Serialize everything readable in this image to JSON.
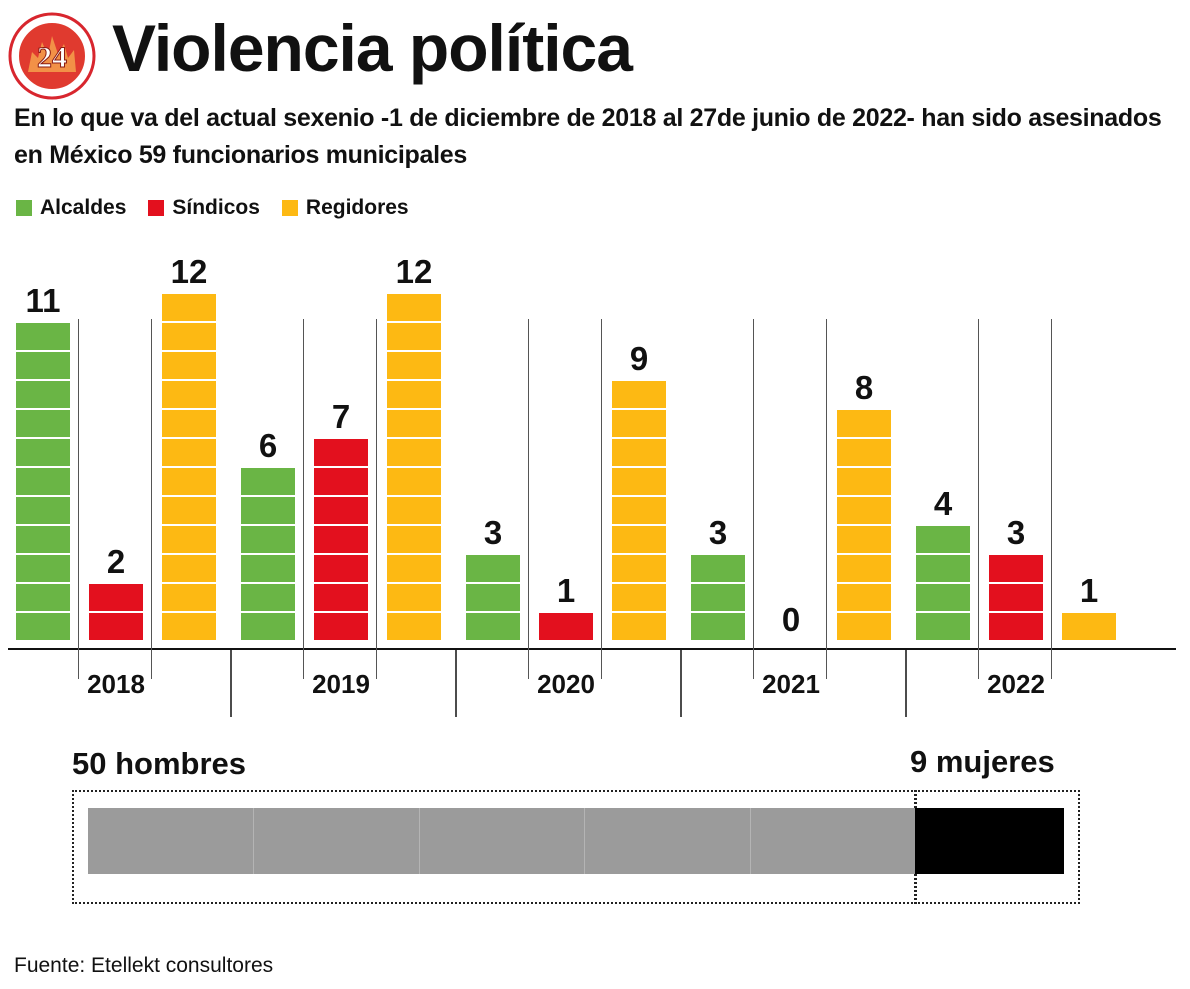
{
  "header": {
    "logo_text": "24",
    "title": "Violencia política",
    "subtitle": "En lo que va del actual sexenio -1 de diciembre de 2018 al 27de junio de 2022- han sido asesinados en México 59 funcionarios municipales"
  },
  "legend": [
    {
      "label": "Alcaldes",
      "color": "#6ab545"
    },
    {
      "label": "Síndicos",
      "color": "#e3101e"
    },
    {
      "label": "Regidores",
      "color": "#fdb913"
    }
  ],
  "chart_data": {
    "type": "bar",
    "categories": [
      "2018",
      "2019",
      "2020",
      "2021",
      "2022"
    ],
    "series": [
      {
        "name": "Alcaldes",
        "values": [
          11,
          6,
          3,
          3,
          4
        ],
        "color": "#6ab545"
      },
      {
        "name": "Síndicos",
        "values": [
          2,
          7,
          1,
          0,
          3
        ],
        "color": "#e3101e"
      },
      {
        "name": "Regidores",
        "values": [
          12,
          12,
          9,
          8,
          1
        ],
        "color": "#fdb913"
      }
    ],
    "ylim": [
      0,
      12
    ],
    "grid": false,
    "legend_position": "top-left",
    "xlabel": "",
    "ylabel": ""
  },
  "gender": {
    "men_label": "50 hombres",
    "women_label": "9 mujeres",
    "men_value": 50,
    "women_value": 9,
    "men_color": "#9b9b9b",
    "women_color": "#000000"
  },
  "source": "Fuente: Etellekt consultores"
}
